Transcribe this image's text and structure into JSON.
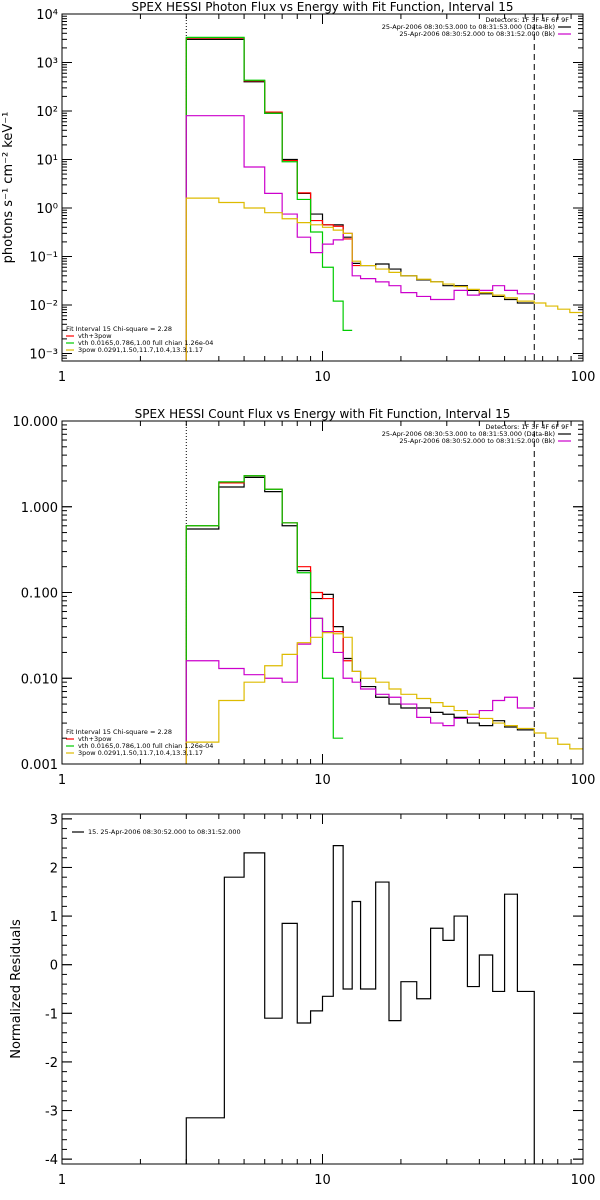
{
  "chart_data": [
    {
      "type": "line",
      "title": "SPEX HESSI Photon Flux vs Energy with Fit Function, Interval 15",
      "ylabel": "photons s⁻¹ cm⁻² keV⁻¹",
      "xscale": "log",
      "yscale": "log",
      "xlim": [
        1,
        100
      ],
      "ylim": [
        0.0007,
        10000
      ],
      "xticks": [
        "1",
        "10",
        "100"
      ],
      "yticks": [
        {
          "v": 0.001,
          "label": "10⁻³"
        },
        {
          "v": 0.01,
          "label": "10⁻²"
        },
        {
          "v": 0.1,
          "label": "10⁻¹"
        },
        {
          "v": 1,
          "label": "10⁰"
        },
        {
          "v": 10,
          "label": "10¹"
        },
        {
          "v": 100,
          "label": "10²"
        },
        {
          "v": 1000,
          "label": "10³"
        },
        {
          "v": 10000,
          "label": "10⁴"
        }
      ],
      "vlines": [
        {
          "x": 3.0,
          "style": "dotted"
        },
        {
          "x": 65,
          "style": "dashed"
        }
      ],
      "info_top": [
        "Detectors: 1F 3F 4F 6F 9F",
        "25-Apr-2006 08:30:53.000 to 08:31:53.000 (Data-Bk)",
        "25-Apr-2006 08:30:52.000 to 08:31:52.000 (Bk)"
      ],
      "info_legend": [
        "Data-Bk",
        "Bk"
      ],
      "info_colors": [
        "#000000",
        "#cc00cc"
      ],
      "fit_text": "Fit Interval 15    Chi-square = 2.28",
      "legend": [
        "vth+3pow",
        "vth 0.0165,0.786,1.00  full chian 1.26e-04",
        "3pow 0.0291,1.50,11.7,10.4,13.3,1.17"
      ],
      "legend_colors": [
        "#ff0000",
        "#00cc00",
        "#ddbb00"
      ],
      "series": [
        {
          "name": "Data-Bk",
          "color": "#000000",
          "step": true,
          "edges": [
            3.0,
            4.0,
            5.0,
            6.0,
            7.0,
            8.0,
            9.0,
            10.0,
            11.0,
            12.0,
            13.0,
            14.0,
            16.0,
            18.0,
            20.0,
            23.0,
            26.0,
            29.0,
            32.0,
            36.0,
            40.0,
            45.0,
            50.0,
            56.0,
            65.0
          ],
          "values": [
            3000,
            3000,
            400,
            90,
            10,
            2.0,
            0.75,
            0.45,
            0.45,
            0.25,
            0.072,
            0.065,
            0.07,
            0.055,
            0.04,
            0.033,
            0.03,
            0.025,
            0.025,
            0.02,
            0.017,
            0.015,
            0.013,
            0.011
          ]
        },
        {
          "name": "vth+3pow",
          "color": "#ff0000",
          "step": true,
          "edges": [
            3.0,
            4.0,
            5.0,
            6.0,
            7.0,
            8.0,
            9.0,
            10.0,
            11.0,
            12.0,
            13.0,
            14.0
          ],
          "values": [
            3200,
            3200,
            420,
            95,
            9.5,
            2.05,
            0.55,
            0.45,
            0.42,
            0.23,
            0.065
          ]
        },
        {
          "name": "vth",
          "color": "#00cc00",
          "step": true,
          "edges": [
            3.0,
            4.0,
            5.0,
            6.0,
            7.0,
            8.0,
            9.0,
            10.0,
            11.0,
            12.0,
            13.0
          ],
          "values": [
            3300,
            3300,
            430,
            90,
            9,
            1.5,
            0.32,
            0.06,
            0.012,
            0.003
          ]
        },
        {
          "name": "Bk",
          "color": "#cc00cc",
          "step": true,
          "edges": [
            3.0,
            4.0,
            5.0,
            6.0,
            7.0,
            8.0,
            9.0,
            10.0,
            11.0,
            12.0,
            13.0,
            14.0,
            16.0,
            18.0,
            20.0,
            23.0,
            26.0,
            29.0,
            32.0,
            36.0,
            40.0,
            45.0,
            50.0,
            56.0,
            65.0
          ],
          "values": [
            80,
            80,
            7,
            2,
            0.75,
            0.25,
            0.12,
            0.18,
            0.22,
            0.3,
            0.04,
            0.035,
            0.03,
            0.025,
            0.018,
            0.015,
            0.013,
            0.013,
            0.02,
            0.016,
            0.02,
            0.025,
            0.02,
            0.017
          ]
        },
        {
          "name": "3pow",
          "color": "#ddbb00",
          "step": true,
          "edges": [
            3.0,
            4.0,
            5.0,
            6.0,
            7.0,
            8.0,
            9.0,
            10.0,
            11.0,
            12.0,
            13.0,
            14.0,
            16.0,
            18.0,
            20.0,
            23.0,
            26.0,
            29.0,
            32.0,
            36.0,
            40.0,
            45.0,
            50.0,
            56.0,
            65.0,
            72.0,
            80.0,
            89.0,
            100.0
          ],
          "values": [
            1.6,
            1.3,
            1.0,
            0.8,
            0.6,
            0.5,
            0.45,
            0.4,
            0.35,
            0.3,
            0.08,
            0.065,
            0.055,
            0.047,
            0.04,
            0.034,
            0.03,
            0.027,
            0.024,
            0.021,
            0.018,
            0.016,
            0.014,
            0.012,
            0.011,
            0.0095,
            0.0082,
            0.007
          ]
        }
      ]
    },
    {
      "type": "line",
      "title": "SPEX HESSI Count Flux vs Energy with Fit Function, Interval 15",
      "ylabel": "",
      "xscale": "log",
      "yscale": "log",
      "xlim": [
        1,
        100
      ],
      "ylim": [
        0.001,
        10
      ],
      "xticks": [
        "1",
        "10",
        "100"
      ],
      "yticks": [
        {
          "v": 0.001,
          "label": "0.001"
        },
        {
          "v": 0.01,
          "label": "0.010"
        },
        {
          "v": 0.1,
          "label": "0.100"
        },
        {
          "v": 1,
          "label": "1.000"
        },
        {
          "v": 10,
          "label": "10.000"
        }
      ],
      "vlines": [
        {
          "x": 3.0,
          "style": "dotted"
        },
        {
          "x": 65,
          "style": "dashed"
        }
      ],
      "info_top": [
        "Detectors: 1F 3F 4F 6F 9F",
        "25-Apr-2006 08:30:53.000 to 08:31:53.000 (Data-Bk)",
        "25-Apr-2006 08:30:52.000 to 08:31:52.000 (Bk)"
      ],
      "info_legend": [
        "Data-Bk",
        "Bk"
      ],
      "info_colors": [
        "#000000",
        "#cc00cc"
      ],
      "fit_text": "Fit Interval 15    Chi-square = 2.28",
      "legend": [
        "vth+3pow",
        "vth 0.0165,0.786,1.00  full chian 1.26e-04",
        "3pow 0.0291,1.50,11.7,10.4,13.3,1.17"
      ],
      "legend_colors": [
        "#ff0000",
        "#00cc00",
        "#ddbb00"
      ],
      "series": [
        {
          "name": "Data-Bk",
          "color": "#000000",
          "step": true,
          "edges": [
            3.0,
            4.0,
            5.0,
            6.0,
            7.0,
            8.0,
            9.0,
            10.0,
            11.0,
            12.0,
            13.0,
            14.0,
            16.0,
            18.0,
            20.0,
            23.0,
            26.0,
            29.0,
            32.0,
            36.0,
            40.0,
            45.0,
            50.0,
            56.0,
            65.0
          ],
          "values": [
            0.55,
            1.7,
            2.2,
            1.5,
            0.6,
            0.18,
            0.085,
            0.095,
            0.04,
            0.017,
            0.012,
            0.008,
            0.006,
            0.005,
            0.0045,
            0.0045,
            0.004,
            0.0038,
            0.0035,
            0.003,
            0.0028,
            0.0032,
            0.0027,
            0.0025
          ]
        },
        {
          "name": "vth+3pow",
          "color": "#ff0000",
          "step": true,
          "edges": [
            3.0,
            4.0,
            5.0,
            6.0,
            7.0,
            8.0,
            9.0,
            10.0,
            11.0,
            12.0,
            13.0
          ],
          "values": [
            0.6,
            1.9,
            2.3,
            1.6,
            0.65,
            0.2,
            0.1,
            0.085,
            0.035,
            0.016
          ]
        },
        {
          "name": "vth",
          "color": "#00cc00",
          "step": true,
          "edges": [
            3.0,
            4.0,
            5.0,
            6.0,
            7.0,
            8.0,
            9.0,
            10.0,
            11.0,
            12.0
          ],
          "values": [
            0.6,
            1.95,
            2.3,
            1.6,
            0.65,
            0.17,
            0.05,
            0.01,
            0.002
          ]
        },
        {
          "name": "Bk",
          "color": "#cc00cc",
          "step": true,
          "edges": [
            3.0,
            4.0,
            5.0,
            6.0,
            7.0,
            8.0,
            9.0,
            10.0,
            11.0,
            12.0,
            13.0,
            14.0,
            16.0,
            18.0,
            20.0,
            23.0,
            26.0,
            29.0,
            32.0,
            36.0,
            40.0,
            45.0,
            50.0,
            56.0,
            65.0
          ],
          "values": [
            0.016,
            0.013,
            0.011,
            0.01,
            0.009,
            0.025,
            0.05,
            0.035,
            0.02,
            0.01,
            0.009,
            0.0075,
            0.0065,
            0.006,
            0.005,
            0.0035,
            0.003,
            0.0028,
            0.0034,
            0.0035,
            0.0042,
            0.0055,
            0.006,
            0.0045
          ]
        },
        {
          "name": "3pow",
          "color": "#ddbb00",
          "step": true,
          "edges": [
            3.0,
            4.0,
            5.0,
            6.0,
            7.0,
            8.0,
            9.0,
            10.0,
            11.0,
            12.0,
            13.0,
            14.0,
            16.0,
            18.0,
            20.0,
            23.0,
            26.0,
            29.0,
            32.0,
            36.0,
            40.0,
            45.0,
            50.0,
            56.0,
            65.0,
            72.0,
            80.0,
            89.0,
            100.0
          ],
          "values": [
            0.0018,
            0.0055,
            0.009,
            0.014,
            0.019,
            0.026,
            0.03,
            0.034,
            0.033,
            0.03,
            0.012,
            0.01,
            0.009,
            0.0075,
            0.0065,
            0.0058,
            0.0052,
            0.0047,
            0.0042,
            0.0038,
            0.0034,
            0.003,
            0.0028,
            0.0026,
            0.0023,
            0.002,
            0.0017,
            0.0015
          ]
        }
      ]
    },
    {
      "type": "line",
      "title": "",
      "ylabel": "Normalized Residuals",
      "xscale": "log",
      "yscale": "linear",
      "xlim": [
        1,
        100
      ],
      "ylim": [
        -4.1,
        3.1
      ],
      "xticks": [
        "1",
        "10",
        "100"
      ],
      "yticks": [
        {
          "v": -4,
          "label": "-4"
        },
        {
          "v": -3,
          "label": "-3"
        },
        {
          "v": -2,
          "label": "-2"
        },
        {
          "v": -1,
          "label": "-1"
        },
        {
          "v": 0,
          "label": "0"
        },
        {
          "v": 1,
          "label": "1"
        },
        {
          "v": 2,
          "label": "2"
        },
        {
          "v": 3,
          "label": "3"
        }
      ],
      "vlines": [],
      "info_legend": [
        "15. 25-Apr-2006 08:30:52.000 to 08:31:52.000"
      ],
      "info_colors": [
        "#000000"
      ],
      "series": [
        {
          "name": "",
          "color": "#000000",
          "step": true,
          "drop": true,
          "edges": [
            3.0,
            4.2,
            5.0,
            6.0,
            7.0,
            8.0,
            9.0,
            10.0,
            11.0,
            12.0,
            13.0,
            14.0,
            16.0,
            18.0,
            20.0,
            23.0,
            26.0,
            29.0,
            32.0,
            36.0,
            40.0,
            45.0,
            50.0,
            56.0,
            65.0
          ],
          "values": [
            -3.15,
            1.8,
            2.3,
            -1.1,
            0.85,
            -1.2,
            -0.95,
            -0.65,
            2.45,
            -0.5,
            1.3,
            -0.5,
            1.7,
            -1.15,
            -0.35,
            -0.7,
            0.75,
            0.5,
            1.0,
            -0.45,
            0.2,
            -0.55,
            1.45,
            -0.55
          ]
        }
      ]
    }
  ]
}
